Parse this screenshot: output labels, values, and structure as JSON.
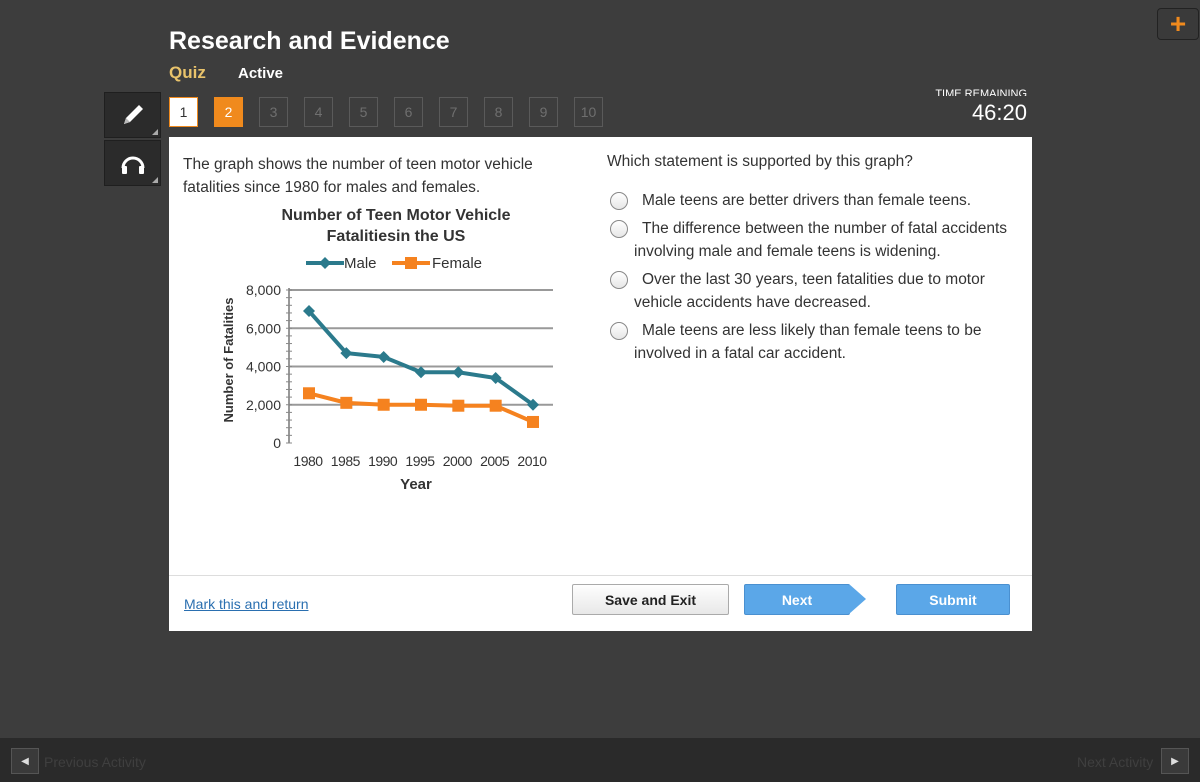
{
  "header": {
    "title": "Research and Evidence",
    "quiz_label": "Quiz",
    "status_label": "Active",
    "add_icon": "plus-icon"
  },
  "tools": [
    {
      "icon": "pencil-icon"
    },
    {
      "icon": "headphones-icon"
    }
  ],
  "question_nav": {
    "items": [
      "1",
      "2",
      "3",
      "4",
      "5",
      "6",
      "7",
      "8",
      "9",
      "10"
    ],
    "current": "2"
  },
  "timer": {
    "label": "TIME REMAINING",
    "value": "46:20"
  },
  "question": {
    "prompt": "The graph shows the number of teen motor vehicle fatalities since 1980 for males and females.",
    "stem": "Which statement is supported by this graph?",
    "options": [
      "Male teens are better drivers than female teens.",
      "The difference between the number of fatal accidents involving male and female teens is widening.",
      "Over the last 30 years, teen fatalities due to motor vehicle accidents have decreased.",
      "Male teens are less likely than female teens to be involved in a fatal car accident."
    ]
  },
  "chart_data": {
    "type": "line",
    "title_line1": "Number of Teen Motor Vehicle",
    "title_line2": "Fatalitiesin the US",
    "xlabel": "Year",
    "ylabel": "Number of Fatalities",
    "x": [
      "1980",
      "1985",
      "1990",
      "1995",
      "2000",
      "2005",
      "2010"
    ],
    "y_ticks": [
      "0",
      "2,000",
      "4,000",
      "6,000",
      "8,000"
    ],
    "ylim": [
      0,
      8000
    ],
    "grid": true,
    "legend_position": "top",
    "series": [
      {
        "name": "Male",
        "color": "#2b7a8c",
        "values": [
          6900,
          4700,
          4500,
          3700,
          3700,
          3400,
          2000
        ]
      },
      {
        "name": "Female",
        "color": "#f5821f",
        "values": [
          2600,
          2100,
          2000,
          2000,
          1950,
          1950,
          1100
        ]
      }
    ]
  },
  "footer": {
    "mark_link": "Mark this and return",
    "save_label": "Save and Exit",
    "next_label": "Next",
    "submit_label": "Submit"
  },
  "bottom_nav": {
    "prev_label": "Previous Activity",
    "next_label": "Next Activity"
  }
}
